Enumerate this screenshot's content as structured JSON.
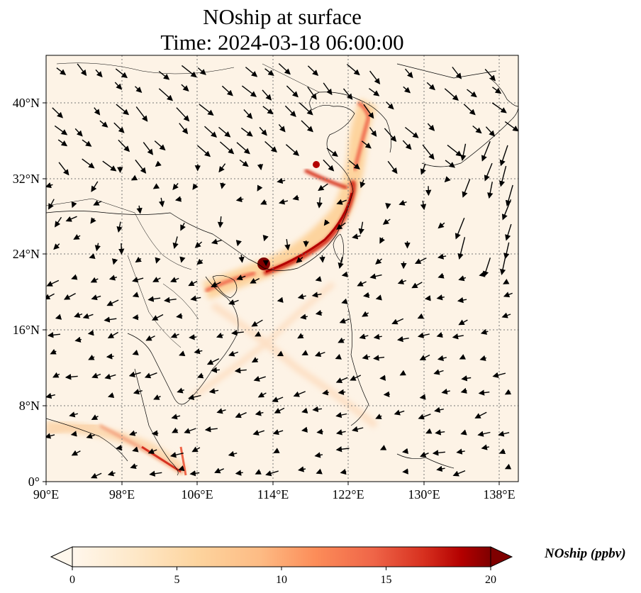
{
  "title": {
    "line1": "NOship at surface",
    "line2": "Time: 2024-03-18 06:00:00"
  },
  "map": {
    "variable": "NOship",
    "lon_range": [
      90,
      139
    ],
    "lat_range": [
      0,
      45
    ],
    "x_ticks": [
      "90°E",
      "98°E",
      "106°E",
      "114°E",
      "122°E",
      "130°E",
      "138°E"
    ],
    "y_ticks": [
      "0°",
      "8°N",
      "16°N",
      "24°N",
      "32°N",
      "40°N"
    ],
    "gridlines": "dotted",
    "overlay": "wind-vectors",
    "colormap": "OrRd",
    "colors": {
      "low": "#fff7ec",
      "mid": "#fdbb84",
      "high": "#7f0000"
    }
  },
  "colorbar": {
    "label": "NOship (ppbv)",
    "ticks": [
      "0",
      "5",
      "10",
      "15",
      "20"
    ],
    "range": [
      0,
      20
    ],
    "extend": "both"
  }
}
